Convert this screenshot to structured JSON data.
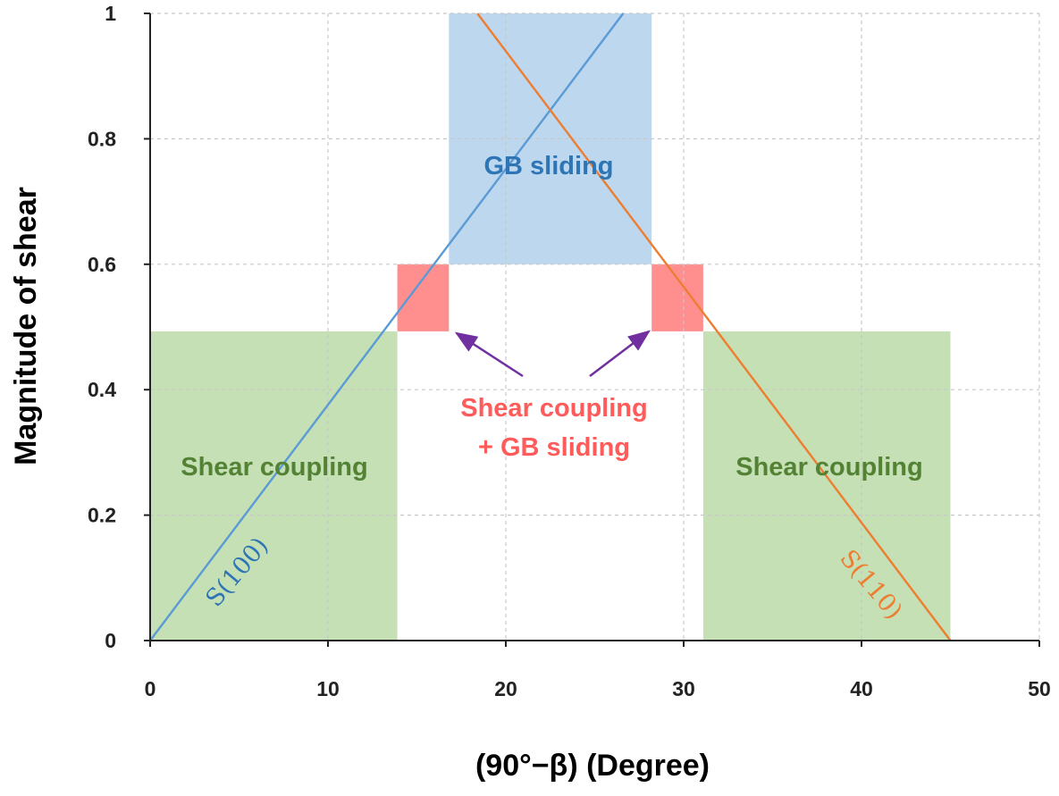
{
  "chart_data": {
    "type": "line",
    "xlabel": "(90°−β) (Degree)",
    "ylabel": "Magnitude of shear",
    "xlim": [
      0,
      50
    ],
    "ylim": [
      0,
      1
    ],
    "x_ticks": [
      "0",
      "10",
      "20",
      "30",
      "40",
      "50"
    ],
    "y_ticks": [
      "0",
      "0.2",
      "0.4",
      "0.6",
      "0.8",
      "1"
    ],
    "grid": true,
    "grid_style": "dashed",
    "series": [
      {
        "name": "S(100)",
        "color": "#5b9bd5",
        "label_color": "#2e75b6",
        "x": [
          0,
          26.6
        ],
        "y": [
          0,
          1
        ]
      },
      {
        "name": "S(110)",
        "color": "#ed7d31",
        "label_color": "#ed7d31",
        "x": [
          18.4,
          45
        ],
        "y": [
          1,
          0
        ]
      }
    ],
    "regions": [
      {
        "label": "Shear coupling",
        "color": "#c5e0b4",
        "text_color": "#548235",
        "x_range": [
          0,
          13.9
        ],
        "y_range": [
          0,
          0.493
        ]
      },
      {
        "label": "Shear coupling",
        "color": "#c5e0b4",
        "text_color": "#548235",
        "x_range": [
          31.1,
          45
        ],
        "y_range": [
          0,
          0.493
        ]
      },
      {
        "label": "GB sliding",
        "color": "#bdd7ee",
        "text_color": "#2e75b6",
        "x_range": [
          16.8,
          28.2
        ],
        "y_range": [
          0.6,
          1
        ]
      },
      {
        "label": "",
        "color": "#ff8f8f",
        "x_range": [
          13.9,
          16.8
        ],
        "y_range": [
          0.493,
          0.6
        ]
      },
      {
        "label": "",
        "color": "#ff8f8f",
        "x_range": [
          28.2,
          31.1
        ],
        "y_range": [
          0.493,
          0.6
        ]
      }
    ],
    "annotations": [
      {
        "lines": [
          "Shear coupling",
          "+ GB sliding"
        ],
        "color": "#ff5b5b",
        "arrow_color": "#7030a0"
      }
    ]
  }
}
